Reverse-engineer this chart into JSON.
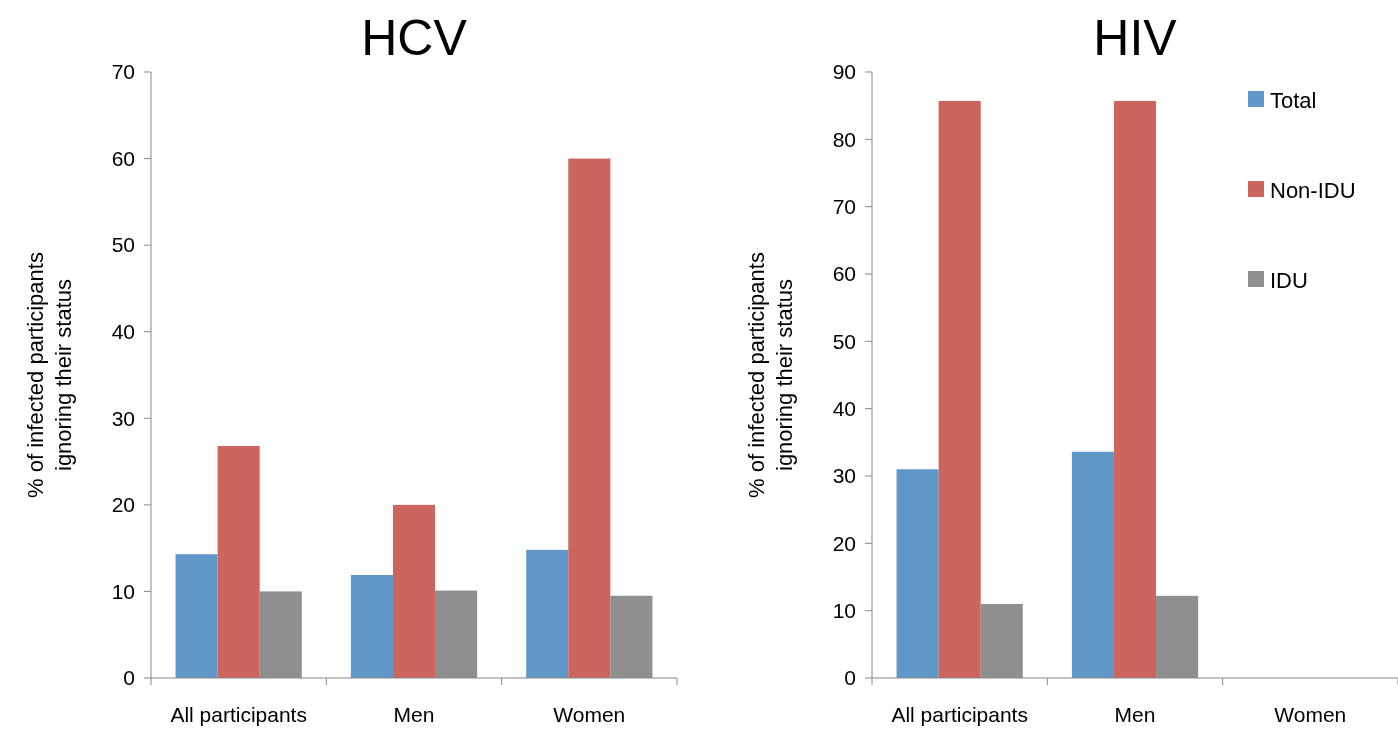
{
  "chart_data": [
    {
      "type": "bar",
      "title": "HCV",
      "ylabel": "% of infected participants\nignoring their status",
      "categories": [
        "All participants",
        "Men",
        "Women"
      ],
      "ylim": [
        0,
        70
      ],
      "yticks": [
        0,
        10,
        20,
        30,
        40,
        50,
        60,
        70
      ],
      "grid": false,
      "legend": false,
      "series": [
        {
          "color": "#6097c9",
          "values": [
            14.3,
            11.9,
            14.8
          ]
        },
        {
          "color": "#cc655e",
          "values": [
            26.8,
            20.0,
            60.0
          ]
        },
        {
          "color": "#8f8f8f",
          "values": [
            10.0,
            10.1,
            9.5
          ]
        }
      ]
    },
    {
      "type": "bar",
      "title": "HIV",
      "ylabel": "% of infected participants\nignoring their status",
      "categories": [
        "All participants",
        "Men",
        "Women"
      ],
      "ylim": [
        0,
        90
      ],
      "yticks": [
        0,
        10,
        20,
        30,
        40,
        50,
        60,
        70,
        80,
        90
      ],
      "grid": false,
      "legend": "right",
      "series": [
        {
          "name": "Total",
          "color": "#6097c9",
          "values": [
            31.0,
            33.6,
            null
          ]
        },
        {
          "name": "Non-IDU",
          "color": "#cc655e",
          "values": [
            85.7,
            85.7,
            null
          ]
        },
        {
          "name": "IDU",
          "color": "#8f8f8f",
          "values": [
            11.0,
            12.2,
            null
          ]
        }
      ]
    }
  ]
}
